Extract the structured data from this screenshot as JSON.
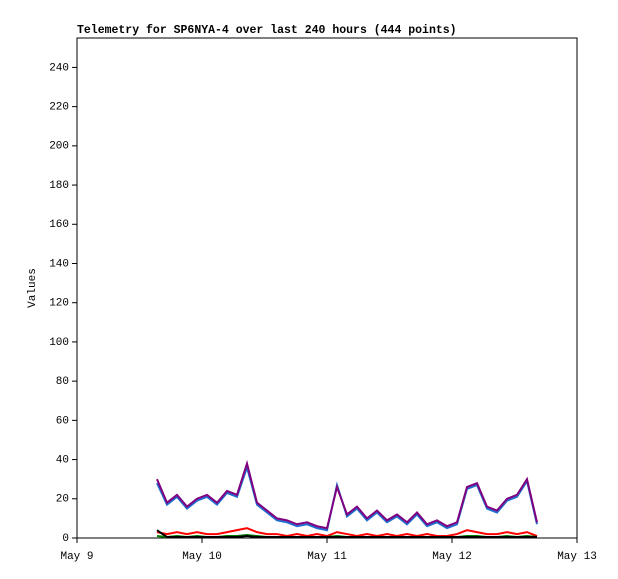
{
  "chart_data": {
    "type": "line",
    "title": "Telemetry for SP6NYA-4 over last 240 hours (444 points)",
    "y_label": "Values",
    "x": [
      9.64,
      9.72,
      9.8,
      9.88,
      9.96,
      10.04,
      10.12,
      10.2,
      10.28,
      10.36,
      10.44,
      10.52,
      10.6,
      10.68,
      10.76,
      10.84,
      10.92,
      11.0,
      11.08,
      11.16,
      11.24,
      11.32,
      11.4,
      11.48,
      11.56,
      11.64,
      11.72,
      11.8,
      11.88,
      11.96,
      12.04,
      12.12,
      12.2,
      12.28,
      12.36,
      12.44,
      12.52,
      12.6,
      12.68
    ],
    "xlim": [
      9,
      13
    ],
    "xticks": [
      {
        "value": 9,
        "label": "May 9"
      },
      {
        "value": 10,
        "label": "May 10"
      },
      {
        "value": 11,
        "label": "May 11"
      },
      {
        "value": 12,
        "label": "May 12"
      },
      {
        "value": 13,
        "label": "May 13"
      }
    ],
    "ylim": [
      0,
      255
    ],
    "yticks": [
      0,
      20,
      40,
      60,
      80,
      100,
      120,
      140,
      160,
      180,
      200,
      220,
      240
    ],
    "series": [
      {
        "color": "#1f6fd0",
        "values": [
          28,
          17,
          21,
          15,
          19,
          21,
          17,
          23,
          21,
          36,
          17,
          13,
          9,
          8,
          6,
          7,
          5,
          4,
          27,
          11,
          15,
          9,
          13,
          8,
          11,
          7,
          12,
          6,
          8,
          5,
          7,
          25,
          27,
          15,
          13,
          19,
          21,
          29,
          7
        ]
      },
      {
        "color": "#800080",
        "values": [
          30,
          18,
          22,
          16,
          20,
          22,
          18,
          24,
          22,
          38,
          18,
          14,
          10,
          9,
          7,
          8,
          6,
          5,
          26,
          12,
          16,
          10,
          14,
          9,
          12,
          8,
          13,
          7,
          9,
          6,
          8,
          26,
          28,
          16,
          14,
          20,
          22,
          30,
          8
        ]
      },
      {
        "color": "#ff0000",
        "values": [
          3,
          2,
          3,
          2,
          3,
          2,
          2,
          3,
          4,
          5,
          3,
          2,
          2,
          1,
          2,
          1,
          2,
          1,
          3,
          2,
          1,
          2,
          1,
          2,
          1,
          2,
          1,
          2,
          1,
          1,
          2,
          4,
          3,
          2,
          2,
          3,
          2,
          3,
          1
        ]
      },
      {
        "color": "#008000",
        "values": [
          1,
          0.5,
          1,
          0.5,
          1,
          0.5,
          0.5,
          1,
          1,
          1.5,
          1,
          0.5,
          0.5,
          0.5,
          0.5,
          0.5,
          0.5,
          0.5,
          1,
          0.5,
          0.5,
          0.5,
          0.5,
          0.5,
          0.5,
          0.5,
          0.5,
          0.5,
          0.5,
          0.5,
          0.5,
          1,
          1,
          0.5,
          0.5,
          1,
          0.5,
          1,
          0.5
        ]
      },
      {
        "color": "#000000",
        "values": [
          4,
          0.5,
          0.5,
          0.5,
          0.5,
          0.5,
          0.5,
          0.5,
          0.5,
          1,
          0.5,
          0.5,
          0.5,
          0.5,
          0.5,
          0.5,
          0.5,
          0.5,
          0.5,
          0.5,
          0.5,
          0.5,
          0.5,
          0.5,
          0.5,
          0.5,
          0.5,
          0.5,
          0.5,
          0.5,
          0.5,
          0.5,
          0.5,
          0.5,
          0.5,
          0.5,
          0.5,
          0.5,
          0.5
        ]
      }
    ]
  }
}
